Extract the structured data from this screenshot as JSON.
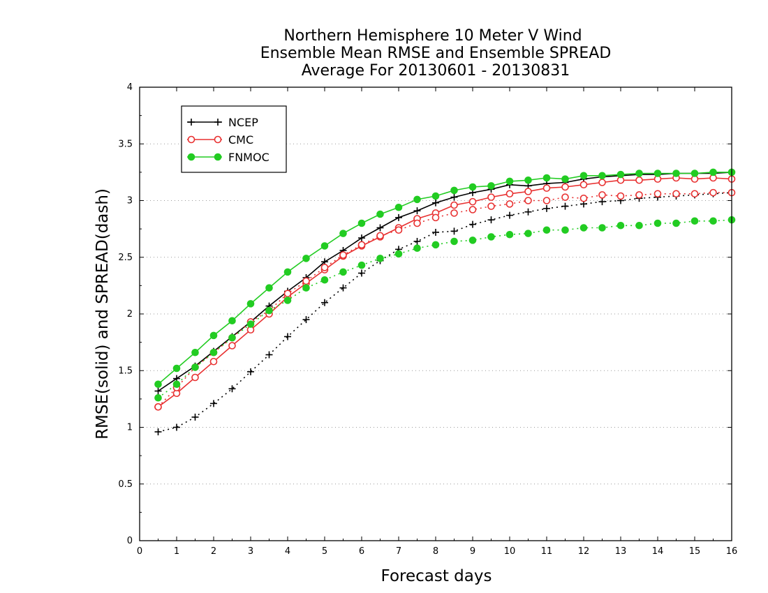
{
  "chart_data": {
    "type": "line",
    "title": [
      "Northern Hemisphere 10 Meter V Wind",
      "Ensemble Mean RMSE and Ensemble SPREAD",
      "Average For 20130601 - 20130831"
    ],
    "xlabel": "Forecast days",
    "ylabel": "RMSE(solid) and SPREAD(dash)",
    "xlim": [
      0,
      16
    ],
    "ylim": [
      0,
      4
    ],
    "xticks": [
      0,
      1,
      2,
      3,
      4,
      5,
      6,
      7,
      8,
      9,
      10,
      11,
      12,
      13,
      14,
      15,
      16
    ],
    "yticks": [
      0,
      0.5,
      1,
      1.5,
      2,
      2.5,
      3,
      3.5,
      4
    ],
    "ytick_labels": [
      "0",
      "0.5",
      "1",
      "1.5",
      "2",
      "2.5",
      "3",
      "3.5",
      "4"
    ],
    "grid": "dotted horizontal",
    "legend_position": "top-left",
    "x": [
      0.5,
      1,
      1.5,
      2,
      2.5,
      3,
      3.5,
      4,
      4.5,
      5,
      5.5,
      6,
      6.5,
      7,
      7.5,
      8,
      8.5,
      9,
      9.5,
      10,
      10.5,
      11,
      11.5,
      12,
      12.5,
      13,
      13.5,
      14,
      14.5,
      15,
      15.5,
      16
    ],
    "series": [
      {
        "name": "NCEP",
        "color": "#000000",
        "marker": "plus",
        "rmse": [
          1.32,
          1.43,
          1.54,
          1.67,
          1.8,
          1.93,
          2.07,
          2.2,
          2.32,
          2.46,
          2.56,
          2.67,
          2.76,
          2.85,
          2.91,
          2.98,
          3.03,
          3.07,
          3.1,
          3.14,
          3.13,
          3.15,
          3.16,
          3.19,
          3.21,
          3.22,
          3.23,
          3.23,
          3.24,
          3.24,
          3.24,
          3.25
        ],
        "spread": [
          0.96,
          1.0,
          1.09,
          1.21,
          1.34,
          1.49,
          1.64,
          1.8,
          1.95,
          2.1,
          2.23,
          2.36,
          2.47,
          2.57,
          2.64,
          2.72,
          2.73,
          2.79,
          2.83,
          2.87,
          2.9,
          2.93,
          2.95,
          2.97,
          2.99,
          3.0,
          3.02,
          3.03,
          3.04,
          3.05,
          3.06,
          3.07
        ]
      },
      {
        "name": "CMC",
        "color": "#e83030",
        "marker": "open-circle",
        "rmse": [
          1.18,
          1.3,
          1.44,
          1.58,
          1.72,
          1.86,
          2.0,
          2.15,
          2.27,
          2.39,
          2.51,
          2.6,
          2.68,
          2.76,
          2.84,
          2.89,
          2.96,
          2.99,
          3.03,
          3.06,
          3.08,
          3.11,
          3.12,
          3.14,
          3.16,
          3.18,
          3.18,
          3.19,
          3.2,
          3.19,
          3.2,
          3.19
        ],
        "spread": [
          1.18,
          1.35,
          1.53,
          1.66,
          1.79,
          1.93,
          2.03,
          2.18,
          2.29,
          2.41,
          2.52,
          2.61,
          2.69,
          2.74,
          2.8,
          2.85,
          2.89,
          2.92,
          2.95,
          2.97,
          3.0,
          3.0,
          3.03,
          3.02,
          3.05,
          3.04,
          3.05,
          3.06,
          3.06,
          3.06,
          3.07,
          3.07
        ]
      },
      {
        "name": "FNMOC",
        "color": "#22cc22",
        "marker": "filled-circle",
        "rmse": [
          1.38,
          1.52,
          1.66,
          1.81,
          1.94,
          2.09,
          2.23,
          2.37,
          2.49,
          2.6,
          2.71,
          2.8,
          2.88,
          2.94,
          3.01,
          3.04,
          3.09,
          3.12,
          3.13,
          3.17,
          3.18,
          3.2,
          3.19,
          3.22,
          3.22,
          3.23,
          3.24,
          3.24,
          3.24,
          3.24,
          3.25,
          3.25
        ],
        "spread": [
          1.26,
          1.38,
          1.53,
          1.66,
          1.79,
          1.91,
          2.03,
          2.12,
          2.23,
          2.3,
          2.37,
          2.43,
          2.49,
          2.53,
          2.58,
          2.61,
          2.64,
          2.65,
          2.68,
          2.7,
          2.71,
          2.74,
          2.74,
          2.76,
          2.76,
          2.78,
          2.78,
          2.8,
          2.8,
          2.82,
          2.82,
          2.83
        ]
      }
    ]
  }
}
